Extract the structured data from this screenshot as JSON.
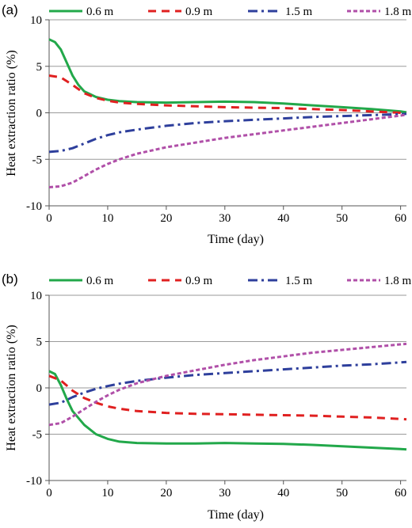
{
  "chart_data": [
    {
      "type": "line",
      "panel_label": "(a)",
      "xlabel": "Time (day)",
      "ylabel": "Heat extraction ratio (%)",
      "xlim": [
        0,
        61
      ],
      "ylim": [
        -10,
        10
      ],
      "xticks": [
        0,
        10,
        20,
        30,
        40,
        50,
        60
      ],
      "yticks": [
        -10,
        -5,
        0,
        5,
        10
      ],
      "grid": "horizontal",
      "legend_position": "top",
      "series": [
        {
          "name": "0.6 m",
          "color": "#22a84a",
          "dash": "solid",
          "x": [
            0,
            1,
            2,
            3,
            4,
            5,
            6,
            8,
            10,
            12,
            15,
            20,
            25,
            30,
            35,
            40,
            45,
            50,
            55,
            60,
            61
          ],
          "y": [
            7.9,
            7.6,
            6.8,
            5.4,
            4.0,
            3.0,
            2.3,
            1.7,
            1.4,
            1.25,
            1.15,
            1.1,
            1.15,
            1.2,
            1.15,
            1.0,
            0.8,
            0.6,
            0.4,
            0.15,
            0.05
          ]
        },
        {
          "name": "0.9 m",
          "color": "#e02020",
          "dash": "dashed",
          "x": [
            0,
            2,
            4,
            6,
            8,
            10,
            12,
            15,
            20,
            25,
            30,
            35,
            40,
            45,
            50,
            55,
            60,
            61
          ],
          "y": [
            4.0,
            3.8,
            3.0,
            2.1,
            1.6,
            1.3,
            1.1,
            0.95,
            0.8,
            0.7,
            0.6,
            0.55,
            0.5,
            0.4,
            0.3,
            0.15,
            0.0,
            -0.05
          ]
        },
        {
          "name": "1.5 m",
          "color": "#2e3f9c",
          "dash": "dashdot",
          "x": [
            0,
            2,
            4,
            6,
            8,
            10,
            12,
            15,
            20,
            25,
            30,
            35,
            40,
            45,
            50,
            55,
            60,
            61
          ],
          "y": [
            -4.2,
            -4.1,
            -3.8,
            -3.3,
            -2.8,
            -2.4,
            -2.1,
            -1.8,
            -1.4,
            -1.1,
            -0.9,
            -0.75,
            -0.6,
            -0.45,
            -0.35,
            -0.25,
            -0.15,
            -0.1
          ]
        },
        {
          "name": "1.8 m",
          "color": "#b04fa8",
          "dash": "dotted",
          "x": [
            0,
            2,
            4,
            6,
            8,
            10,
            12,
            15,
            20,
            25,
            30,
            35,
            40,
            45,
            50,
            55,
            60,
            61
          ],
          "y": [
            -8.0,
            -7.9,
            -7.5,
            -6.8,
            -6.1,
            -5.5,
            -5.0,
            -4.4,
            -3.7,
            -3.2,
            -2.7,
            -2.3,
            -1.9,
            -1.5,
            -1.1,
            -0.7,
            -0.3,
            -0.2
          ]
        }
      ]
    },
    {
      "type": "line",
      "panel_label": "(b)",
      "xlabel": "Time (day)",
      "ylabel": "Heat extraction ratio (%)",
      "xlim": [
        0,
        61
      ],
      "ylim": [
        -10,
        10
      ],
      "xticks": [
        0,
        10,
        20,
        30,
        40,
        50,
        60
      ],
      "yticks": [
        -10,
        -5,
        0,
        5,
        10
      ],
      "grid": "horizontal",
      "legend_position": "top",
      "series": [
        {
          "name": "0.6 m",
          "color": "#22a84a",
          "dash": "solid",
          "x": [
            0,
            1,
            2,
            3,
            4,
            6,
            8,
            10,
            12,
            15,
            20,
            25,
            30,
            35,
            40,
            45,
            50,
            55,
            60,
            61
          ],
          "y": [
            1.8,
            1.5,
            0.3,
            -1.2,
            -2.5,
            -4.0,
            -5.0,
            -5.5,
            -5.8,
            -5.95,
            -6.0,
            -6.0,
            -5.95,
            -6.0,
            -6.05,
            -6.15,
            -6.3,
            -6.45,
            -6.6,
            -6.65
          ]
        },
        {
          "name": "0.9 m",
          "color": "#e02020",
          "dash": "dashed",
          "x": [
            0,
            2,
            4,
            6,
            8,
            10,
            12,
            15,
            20,
            25,
            30,
            35,
            40,
            45,
            50,
            55,
            60,
            61
          ],
          "y": [
            1.3,
            0.8,
            -0.3,
            -1.1,
            -1.6,
            -2.0,
            -2.25,
            -2.5,
            -2.7,
            -2.8,
            -2.85,
            -2.9,
            -2.95,
            -3.0,
            -3.1,
            -3.2,
            -3.35,
            -3.4
          ]
        },
        {
          "name": "1.5 m",
          "color": "#2e3f9c",
          "dash": "dashdot",
          "x": [
            0,
            2,
            4,
            6,
            8,
            10,
            12,
            15,
            20,
            25,
            30,
            35,
            40,
            45,
            50,
            55,
            60,
            61
          ],
          "y": [
            -1.8,
            -1.6,
            -1.0,
            -0.5,
            -0.1,
            0.2,
            0.45,
            0.75,
            1.1,
            1.4,
            1.6,
            1.8,
            2.0,
            2.2,
            2.4,
            2.55,
            2.75,
            2.8
          ]
        },
        {
          "name": "1.8 m",
          "color": "#b04fa8",
          "dash": "dotted",
          "x": [
            0,
            2,
            4,
            6,
            8,
            10,
            12,
            15,
            20,
            25,
            30,
            35,
            40,
            45,
            50,
            55,
            60,
            61
          ],
          "y": [
            -4.0,
            -3.8,
            -3.1,
            -2.3,
            -1.5,
            -0.8,
            -0.2,
            0.5,
            1.3,
            1.9,
            2.5,
            3.0,
            3.4,
            3.8,
            4.1,
            4.4,
            4.7,
            4.75
          ]
        }
      ]
    }
  ]
}
